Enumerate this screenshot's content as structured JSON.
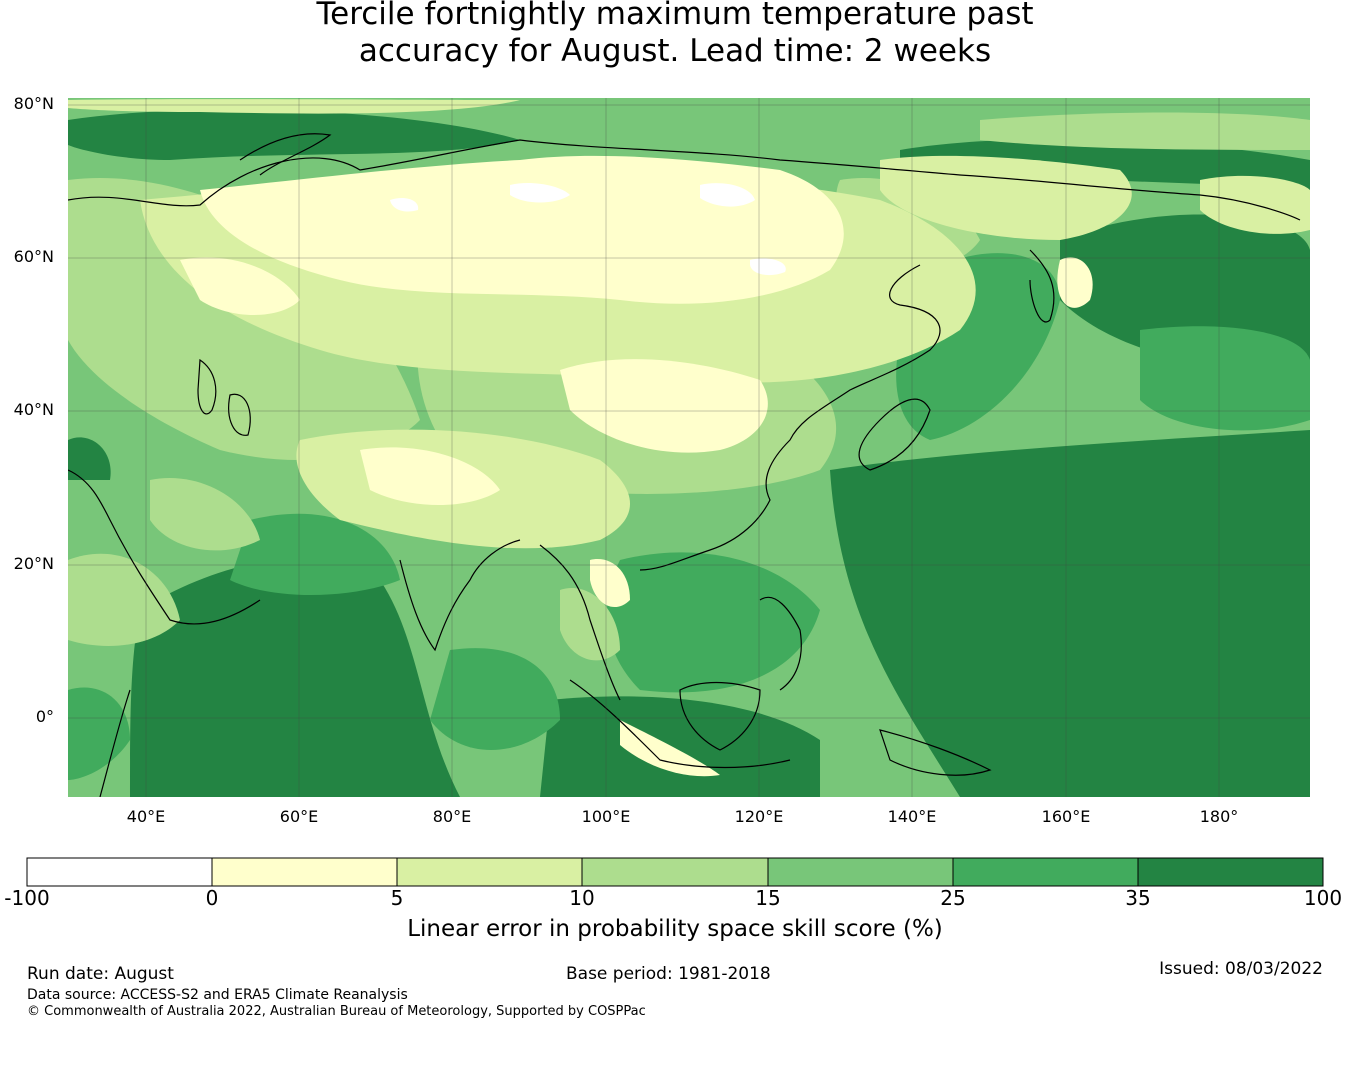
{
  "title": {
    "line1": "Tercile fortnightly maximum temperature past",
    "line2": "accuracy for August. Lead time: 2 weeks"
  },
  "map": {
    "lat_labels": [
      "80°N",
      "60°N",
      "40°N",
      "20°N",
      "0°"
    ],
    "lon_labels": [
      "40°E",
      "60°E",
      "80°E",
      "100°E",
      "120°E",
      "140°E",
      "160°E",
      "180°"
    ],
    "lat_range": [
      -10,
      80
    ],
    "lon_range": [
      30,
      192
    ],
    "gridlines": true
  },
  "colorbar": {
    "ticks": [
      "-100",
      "0",
      "5",
      "10",
      "15",
      "25",
      "35",
      "100"
    ],
    "colors": [
      "#ffffff",
      "#ffffcc",
      "#d9f0a3",
      "#addd8e",
      "#78c679",
      "#41ab5d",
      "#238443"
    ],
    "label": "Linear error in probability space skill score (%)"
  },
  "footer": {
    "run_date": "Run date: August",
    "base_period": "Base period: 1981-2018",
    "issued": "Issued: 08/03/2022",
    "data_source": "Data source: ACCESS-S2 and ERA5 Climate Reanalysis",
    "copyright": "© Commonwealth of Australia 2022, Australian Bureau of Meteorology, Supported by COSPPac"
  }
}
